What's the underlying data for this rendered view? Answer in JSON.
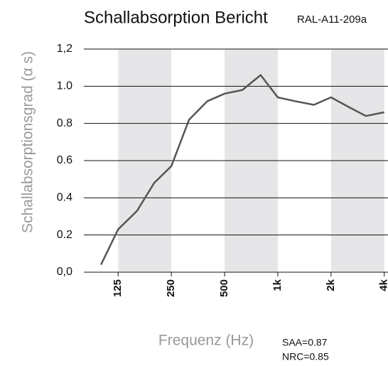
{
  "chart_data": {
    "type": "line",
    "title": "Schallabsorption Bericht",
    "subtitle": "RAL-A11-209a",
    "x_label": "Frequenz (Hz)",
    "y_label": "Schallabsorptionsgrad (α s)",
    "annotations": [
      "SAA=0.87",
      "NRC=0.85"
    ],
    "x": [
      100,
      125,
      160,
      200,
      250,
      315,
      400,
      500,
      630,
      800,
      1000,
      1250,
      1600,
      2000,
      2500,
      3150,
      4000
    ],
    "series": [
      {
        "name": "Schallabsorptionsgrad",
        "color": "#555555",
        "values": [
          0.04,
          0.23,
          0.33,
          0.48,
          0.57,
          0.82,
          0.92,
          0.96,
          0.98,
          1.06,
          0.94,
          0.92,
          0.9,
          0.94,
          0.89,
          0.84,
          0.86
        ]
      }
    ],
    "xscale": "log",
    "xlim": [
      80,
      4200
    ],
    "xticks": [
      125,
      250,
      500,
      {
        "value": 1000,
        "label": "1k"
      },
      {
        "value": 2000,
        "label": "2k"
      },
      {
        "value": 4000,
        "label": "4k"
      }
    ],
    "ylim": [
      0,
      1.2
    ],
    "yticks": [
      {
        "value": 0,
        "label": "0,0"
      },
      0.2,
      0.4,
      0.6,
      0.8,
      {
        "value": 1,
        "label": "1.0"
      },
      {
        "value": 1.2,
        "label": "1,2"
      }
    ],
    "grid": true,
    "band_color": "#e6e6e8"
  }
}
